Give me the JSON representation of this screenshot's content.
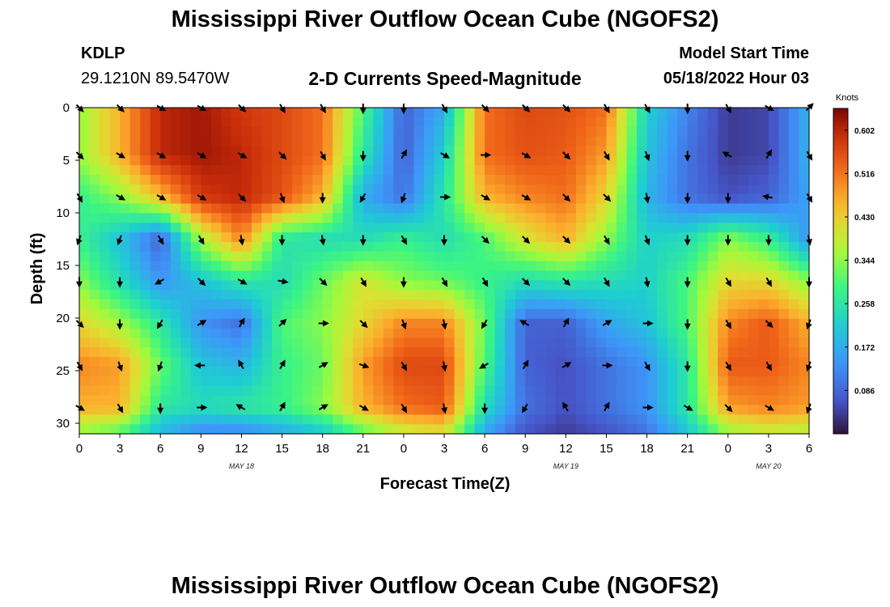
{
  "header": {
    "title": "Mississippi River Outflow Ocean Cube (NGOFS2)",
    "station": "KDLP",
    "coords": "29.1210N  89.5470W",
    "subtitle": "2-D Currents Speed-Magnitude",
    "model_start_label": "Model Start Time",
    "model_start_value": "05/18/2022 Hour 03"
  },
  "footer": {
    "title": "Mississippi River Outflow Ocean Cube (NGOFS2)"
  },
  "chart_data": {
    "type": "heatmap",
    "title": "2-D Currents Speed-Magnitude",
    "xlabel": "Forecast Time(Z)",
    "ylabel": "Depth (ft)",
    "x_tick_labels": [
      "0",
      "3",
      "6",
      "9",
      "12",
      "15",
      "18",
      "21",
      "0",
      "3",
      "6",
      "9",
      "12",
      "15",
      "18",
      "21",
      "0",
      "3",
      "6"
    ],
    "x_range_hours": [
      0,
      54
    ],
    "date_labels": [
      {
        "label": "MAY 18",
        "hour": 12
      },
      {
        "label": "MAY 19",
        "hour": 36
      },
      {
        "label": "MAY 20",
        "hour": 51
      }
    ],
    "y_ticks": [
      0,
      5,
      10,
      15,
      20,
      25,
      30
    ],
    "y_range_ft": [
      0,
      31
    ],
    "y_inverted": true,
    "colorbar": {
      "label": "Knots",
      "min": 0,
      "max": 0.645,
      "ticks": [
        "0.602",
        "0.516",
        "0.430",
        "0.344",
        "0.258",
        "0.172",
        "0.086"
      ],
      "tick_values": [
        0.602,
        0.516,
        0.43,
        0.344,
        0.258,
        0.172,
        0.086
      ],
      "colormap": "turbo"
    },
    "anchor_times_hours": [
      0,
      3,
      6,
      9,
      12,
      15,
      18,
      21,
      24,
      27,
      30,
      33,
      36,
      39,
      42,
      45,
      48,
      51,
      54
    ],
    "anchor_depths_ft": [
      0,
      4.5,
      8.5,
      12.5,
      16.5,
      20.5,
      24.5,
      28.5,
      31
    ],
    "speed_knots": [
      [
        0.35,
        0.46,
        0.6,
        0.62,
        0.58,
        0.56,
        0.52,
        0.3,
        0.08,
        0.17,
        0.52,
        0.56,
        0.55,
        0.52,
        0.22,
        0.12,
        0.04,
        0.05,
        0.18
      ],
      [
        0.35,
        0.46,
        0.6,
        0.62,
        0.6,
        0.56,
        0.52,
        0.26,
        0.08,
        0.22,
        0.52,
        0.55,
        0.54,
        0.48,
        0.2,
        0.1,
        0.04,
        0.05,
        0.18
      ],
      [
        0.28,
        0.34,
        0.45,
        0.58,
        0.6,
        0.55,
        0.46,
        0.17,
        0.1,
        0.26,
        0.46,
        0.5,
        0.52,
        0.42,
        0.18,
        0.1,
        0.06,
        0.08,
        0.16
      ],
      [
        0.28,
        0.2,
        0.08,
        0.36,
        0.5,
        0.26,
        0.24,
        0.24,
        0.28,
        0.24,
        0.3,
        0.4,
        0.46,
        0.34,
        0.22,
        0.24,
        0.34,
        0.28,
        0.14
      ],
      [
        0.34,
        0.24,
        0.14,
        0.2,
        0.26,
        0.24,
        0.32,
        0.4,
        0.34,
        0.32,
        0.28,
        0.24,
        0.26,
        0.24,
        0.22,
        0.3,
        0.42,
        0.42,
        0.34
      ],
      [
        0.42,
        0.36,
        0.26,
        0.14,
        0.1,
        0.3,
        0.34,
        0.42,
        0.5,
        0.5,
        0.32,
        0.08,
        0.08,
        0.16,
        0.2,
        0.3,
        0.5,
        0.54,
        0.46
      ],
      [
        0.5,
        0.48,
        0.32,
        0.2,
        0.18,
        0.28,
        0.32,
        0.48,
        0.56,
        0.56,
        0.3,
        0.08,
        0.06,
        0.1,
        0.14,
        0.26,
        0.54,
        0.54,
        0.5
      ],
      [
        0.46,
        0.46,
        0.26,
        0.24,
        0.26,
        0.28,
        0.34,
        0.46,
        0.52,
        0.54,
        0.24,
        0.1,
        0.06,
        0.1,
        0.14,
        0.26,
        0.48,
        0.5,
        0.48
      ],
      [
        0.34,
        0.3,
        0.18,
        0.12,
        0.12,
        0.16,
        0.2,
        0.3,
        0.38,
        0.4,
        0.16,
        0.06,
        0.04,
        0.06,
        0.1,
        0.2,
        0.34,
        0.38,
        0.36
      ]
    ],
    "arrow_times_hours": [
      0,
      3,
      6,
      9,
      12,
      15,
      18,
      21,
      24,
      27,
      30,
      33,
      36,
      39,
      42,
      45,
      48,
      51,
      54
    ],
    "arrow_depths_ft": [
      0,
      4.5,
      8.5,
      12.5,
      16.5,
      20.5,
      24.5,
      28.5
    ],
    "arrow_direction_deg": [
      [
        135,
        135,
        120,
        120,
        135,
        150,
        150,
        180,
        180,
        150,
        135,
        135,
        135,
        150,
        150,
        180,
        150,
        120,
        45
      ],
      [
        135,
        120,
        120,
        120,
        120,
        135,
        150,
        180,
        30,
        120,
        90,
        120,
        135,
        150,
        160,
        180,
        300,
        30,
        150
      ],
      [
        150,
        120,
        120,
        120,
        135,
        160,
        180,
        210,
        200,
        90,
        120,
        120,
        135,
        135,
        170,
        180,
        180,
        280,
        150
      ],
      [
        200,
        200,
        150,
        150,
        170,
        180,
        170,
        180,
        150,
        180,
        135,
        135,
        135,
        150,
        160,
        180,
        180,
        180,
        170
      ],
      [
        180,
        180,
        240,
        135,
        120,
        100,
        135,
        150,
        180,
        150,
        150,
        135,
        135,
        150,
        170,
        180,
        150,
        150,
        180
      ],
      [
        135,
        180,
        210,
        60,
        30,
        45,
        90,
        135,
        160,
        170,
        210,
        300,
        30,
        60,
        90,
        180,
        150,
        135,
        200
      ],
      [
        150,
        160,
        200,
        270,
        330,
        30,
        60,
        110,
        150,
        170,
        240,
        30,
        60,
        90,
        150,
        180,
        150,
        150,
        200
      ],
      [
        120,
        150,
        180,
        90,
        300,
        30,
        60,
        120,
        150,
        170,
        180,
        210,
        330,
        30,
        90,
        120,
        135,
        120,
        200
      ]
    ]
  }
}
